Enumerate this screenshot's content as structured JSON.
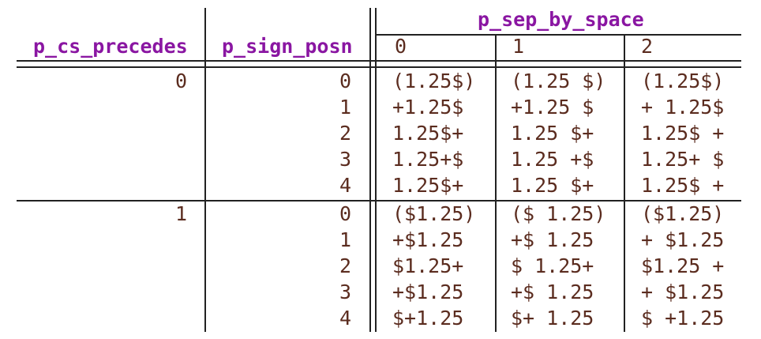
{
  "table": {
    "headers": {
      "p_cs_precedes": "p_cs_precedes",
      "p_sign_posn": "p_sign_posn",
      "p_sep_by_space": "p_sep_by_space",
      "sep_values": [
        "0",
        "1",
        "2"
      ]
    },
    "groups": [
      {
        "p_cs_precedes": "0",
        "rows": [
          {
            "posn": "0",
            "values": [
              "(1.25$)",
              "(1.25 $)",
              "(1.25$)"
            ]
          },
          {
            "posn": "1",
            "values": [
              "+1.25$",
              "+1.25 $",
              "+ 1.25$"
            ]
          },
          {
            "posn": "2",
            "values": [
              "1.25$+",
              "1.25 $+",
              "1.25$ +"
            ]
          },
          {
            "posn": "3",
            "values": [
              "1.25+$",
              "1.25 +$",
              "1.25+ $"
            ]
          },
          {
            "posn": "4",
            "values": [
              "1.25$+",
              "1.25 $+",
              "1.25$ +"
            ]
          }
        ]
      },
      {
        "p_cs_precedes": "1",
        "rows": [
          {
            "posn": "0",
            "values": [
              "($1.25)",
              "($ 1.25)",
              "($1.25)"
            ]
          },
          {
            "posn": "1",
            "values": [
              "+$1.25",
              "+$ 1.25",
              "+ $1.25"
            ]
          },
          {
            "posn": "2",
            "values": [
              "$1.25+",
              "$ 1.25+",
              "$1.25 +"
            ]
          },
          {
            "posn": "3",
            "values": [
              "+$1.25",
              "+$ 1.25",
              "+ $1.25"
            ]
          },
          {
            "posn": "4",
            "values": [
              "$+1.25",
              "$+ 1.25",
              "$ +1.25"
            ]
          }
        ]
      }
    ]
  }
}
